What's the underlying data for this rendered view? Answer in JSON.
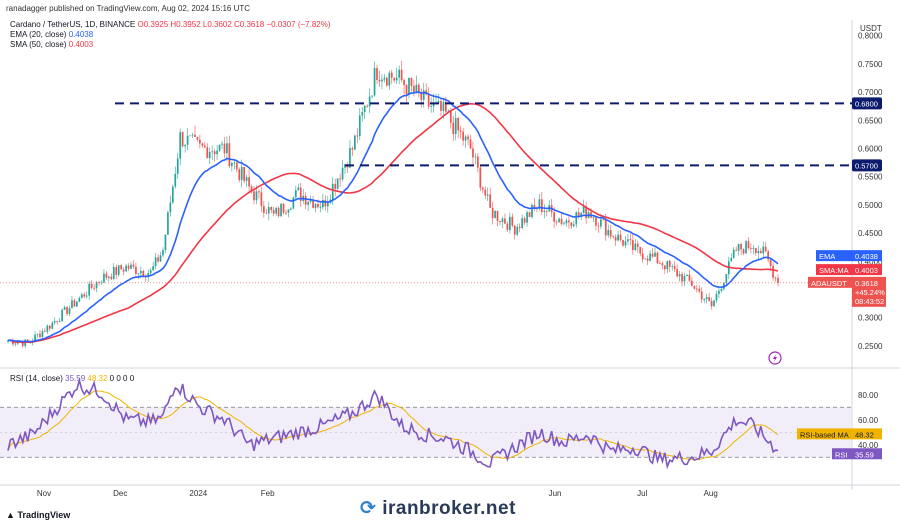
{
  "header": {
    "published": "ranadagger published on TradingView.com, Aug 02, 2024 15:16 UTC"
  },
  "legend": {
    "symbol": "Cardano / TetherUS, 1D, BINANCE",
    "ohlc": "O0.3925 H0.3952 L0.3602 C0.3618 −0.0307 (−7.82%)",
    "ema_label": "EMA (20, close)",
    "ema_value": "0.4038",
    "sma_label": "SMA (50, close)",
    "sma_value": "0.4003"
  },
  "rsi_legend": {
    "label": "RSI (14, close)",
    "rsi_value": "35.59",
    "ma_value": "48.32",
    "extra": "0 0 0 0"
  },
  "currency": "USDT",
  "footer": {
    "brand": "TradingView",
    "watermark": "iranbroker.net"
  },
  "colors": {
    "bull": "#26a69a",
    "bear": "#ef5350",
    "ema": "#2962ff",
    "sma": "#f23645",
    "rsi": "#7e57c2",
    "rsi_ma": "#f0b400",
    "level_line": "#0d1b6e",
    "rsi_band": "#ede7f6"
  },
  "chart_data": [
    {
      "type": "candlestick",
      "ylim": [
        0.225,
        0.81
      ],
      "y_ticks": [
        "0.8000",
        "0.7500",
        "0.7000",
        "0.6500",
        "0.6000",
        "0.5500",
        "0.5000",
        "0.4500",
        "0.4000",
        "0.3500",
        "0.3000",
        "0.2500"
      ],
      "x_ticks": [
        "Nov",
        "Dec",
        "2024",
        "Feb",
        "Jun",
        "Jul",
        "Aug"
      ],
      "horizontal_levels": [
        {
          "value": 0.68,
          "label": "0.6800"
        },
        {
          "value": 0.57,
          "label": "0.5700"
        }
      ],
      "price_tags": [
        {
          "name": "EMA",
          "label": "EMA",
          "value": "0.4038"
        },
        {
          "name": "SMA:MA",
          "label": "SMA:MA",
          "value": "0.4003"
        },
        {
          "name": "ADAUSDT",
          "label": "ADAUSDT",
          "value": "0.3618",
          "extra1": "+45.24%",
          "extra2": "08:43:52"
        }
      ],
      "close_series_anchors": [
        [
          0,
          0.26
        ],
        [
          8,
          0.255
        ],
        [
          18,
          0.29
        ],
        [
          28,
          0.33
        ],
        [
          38,
          0.37
        ],
        [
          48,
          0.39
        ],
        [
          58,
          0.38
        ],
        [
          63,
          0.42
        ],
        [
          70,
          0.62
        ],
        [
          78,
          0.6
        ],
        [
          88,
          0.6
        ],
        [
          98,
          0.53
        ],
        [
          108,
          0.48
        ],
        [
          118,
          0.52
        ],
        [
          128,
          0.5
        ],
        [
          140,
          0.6
        ],
        [
          150,
          0.74
        ],
        [
          160,
          0.72
        ],
        [
          170,
          0.68
        ],
        [
          178,
          0.66
        ],
        [
          188,
          0.6
        ],
        [
          196,
          0.49
        ],
        [
          206,
          0.46
        ],
        [
          216,
          0.5
        ],
        [
          226,
          0.47
        ],
        [
          236,
          0.49
        ],
        [
          245,
          0.45
        ],
        [
          255,
          0.42
        ],
        [
          265,
          0.4
        ],
        [
          278,
          0.36
        ],
        [
          286,
          0.32
        ],
        [
          296,
          0.42
        ],
        [
          303,
          0.43
        ],
        [
          308,
          0.41
        ],
        [
          313,
          0.3618
        ]
      ],
      "series": [
        {
          "name": "EMA (20, close)",
          "last": 0.4038
        },
        {
          "name": "SMA (50, close)",
          "last": 0.4003
        }
      ]
    },
    {
      "type": "line",
      "name": "RSI (14, close)",
      "ylim": [
        15,
        95
      ],
      "y_ticks": [
        "80.00",
        "60.00",
        "40.00"
      ],
      "bands": [
        30,
        70
      ],
      "rsi_anchors": [
        [
          0,
          40
        ],
        [
          10,
          48
        ],
        [
          20,
          70
        ],
        [
          28,
          88
        ],
        [
          38,
          82
        ],
        [
          48,
          60
        ],
        [
          58,
          58
        ],
        [
          63,
          62
        ],
        [
          68,
          90
        ],
        [
          78,
          70
        ],
        [
          88,
          60
        ],
        [
          98,
          40
        ],
        [
          108,
          45
        ],
        [
          118,
          50
        ],
        [
          128,
          55
        ],
        [
          140,
          65
        ],
        [
          150,
          80
        ],
        [
          160,
          55
        ],
        [
          170,
          48
        ],
        [
          178,
          45
        ],
        [
          188,
          35
        ],
        [
          196,
          25
        ],
        [
          206,
          38
        ],
        [
          216,
          50
        ],
        [
          226,
          42
        ],
        [
          236,
          48
        ],
        [
          245,
          35
        ],
        [
          255,
          38
        ],
        [
          265,
          28
        ],
        [
          278,
          30
        ],
        [
          286,
          35
        ],
        [
          296,
          60
        ],
        [
          303,
          55
        ],
        [
          308,
          45
        ],
        [
          313,
          35.59
        ]
      ],
      "tags": [
        {
          "label": "RSI-based MA",
          "value": "48.32"
        },
        {
          "label": "RSI",
          "value": "35.59"
        }
      ]
    }
  ]
}
